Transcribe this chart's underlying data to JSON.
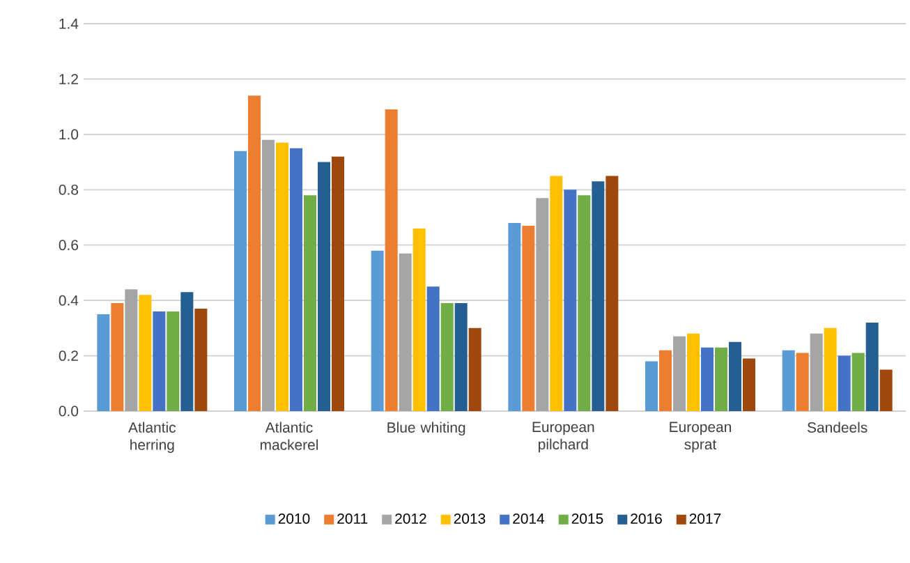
{
  "chart_data": {
    "type": "bar",
    "categories": [
      "Atlantic herring",
      "Atlantic mackerel",
      "Blue whiting",
      "European pilchard",
      "European sprat",
      "Sandeels"
    ],
    "series": [
      {
        "name": "2010",
        "color": "#5b9bd5",
        "values": [
          0.35,
          0.94,
          0.58,
          0.68,
          0.18,
          0.22
        ]
      },
      {
        "name": "2011",
        "color": "#ed7d31",
        "values": [
          0.39,
          1.14,
          1.09,
          0.67,
          0.22,
          0.21
        ]
      },
      {
        "name": "2012",
        "color": "#a5a5a5",
        "values": [
          0.44,
          0.98,
          0.57,
          0.77,
          0.27,
          0.28
        ]
      },
      {
        "name": "2013",
        "color": "#ffc000",
        "values": [
          0.42,
          0.97,
          0.66,
          0.85,
          0.28,
          0.3
        ]
      },
      {
        "name": "2014",
        "color": "#4472c4",
        "values": [
          0.36,
          0.95,
          0.45,
          0.8,
          0.23,
          0.2
        ]
      },
      {
        "name": "2015",
        "color": "#70ad47",
        "values": [
          0.36,
          0.78,
          0.39,
          0.78,
          0.23,
          0.21
        ]
      },
      {
        "name": "2016",
        "color": "#255e91",
        "values": [
          0.43,
          0.9,
          0.39,
          0.83,
          0.25,
          0.32
        ]
      },
      {
        "name": "2017",
        "color": "#9e480e",
        "values": [
          0.37,
          0.92,
          0.3,
          0.85,
          0.19,
          0.15
        ]
      }
    ],
    "ylim": [
      0,
      1.4
    ],
    "yticks": [
      {
        "value": 0,
        "label": "0.0"
      },
      0.2,
      0.4,
      0.6,
      0.8,
      {
        "value": 1,
        "label": "1.0"
      },
      1.2,
      1.4
    ],
    "grid": "y",
    "legend": "bottom"
  }
}
